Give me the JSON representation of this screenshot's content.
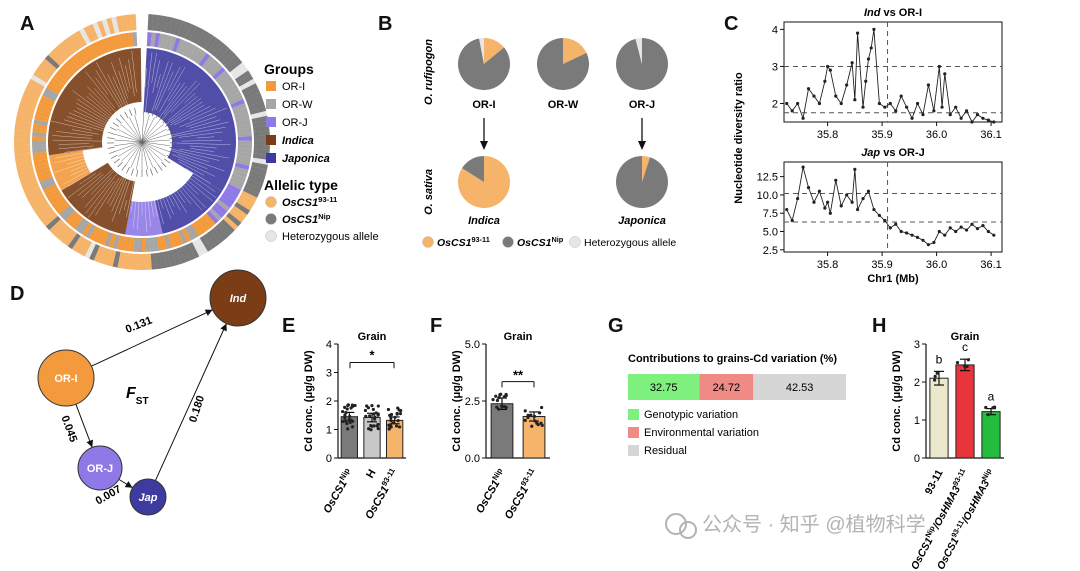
{
  "colors": {
    "or_i": "#f39a3d",
    "or_w": "#a6a6a6",
    "or_j": "#8f79e6",
    "indica": "#7a3d15",
    "japonica": "#3e3ba0",
    "allele_9311": "#f5b46a",
    "allele_nip": "#7a7a7a",
    "hetero": "#e6e6e6",
    "genotypic": "#7ef07e",
    "environmental": "#f08a84",
    "residual": "#d6d6d6",
    "h_9311": "#ece8cc",
    "h_hma3_9311": "#e8343b",
    "h_hma3_nip": "#25bb3c"
  },
  "panels": {
    "a": "A",
    "b": "B",
    "c": "C",
    "d": "D",
    "e": "E",
    "f": "F",
    "g": "G",
    "h": "H"
  },
  "panel_a": {
    "groups_title": "Groups",
    "groups": [
      "OR-I",
      "OR-W",
      "OR-J",
      "Indica",
      "Japonica"
    ],
    "allelic_title": "Allelic type",
    "alleles": [
      {
        "base": "OsCS1",
        "sup": "93-11"
      },
      {
        "base": "OsCS1",
        "sup": "Nip"
      },
      {
        "base": "Heterozygous allele",
        "sup": ""
      }
    ]
  },
  "panel_b": {
    "row1_label": "O. rufipogon",
    "row2_label": "O. sativa",
    "pies_top": [
      {
        "label": "OR-I",
        "shares": [
          0.14,
          0.83,
          0.03
        ]
      },
      {
        "label": "OR-W",
        "shares": [
          0.18,
          0.82,
          0.0
        ]
      },
      {
        "label": "OR-J",
        "shares": [
          0.0,
          0.96,
          0.04
        ]
      }
    ],
    "pies_bottom": [
      {
        "label": "Indica",
        "shares": [
          0.84,
          0.16,
          0.0
        ]
      },
      {
        "label": "Japonica",
        "shares": [
          0.05,
          0.95,
          0.0
        ]
      }
    ],
    "legend": [
      {
        "base": "OsCS1",
        "sup": "93-11"
      },
      {
        "base": "OsCS1",
        "sup": "Nip"
      },
      {
        "base": "Heterozygous allele",
        "sup": ""
      }
    ]
  },
  "chart_data": [
    {
      "type": "line",
      "title": "Ind vs OR-I",
      "ylabel": "Nucleotide diversity ratio",
      "xlim": [
        35.72,
        36.12
      ],
      "ylim": [
        1.5,
        4.2
      ],
      "yticks": [
        "2",
        "3",
        "4"
      ],
      "xticks": [
        "35.8",
        "35.9",
        "36.0",
        "36.1"
      ],
      "thresholds": [
        3.0,
        1.75
      ],
      "vline": 35.91,
      "x": [
        35.725,
        35.735,
        35.745,
        35.755,
        35.765,
        35.775,
        35.785,
        35.795,
        35.8,
        35.805,
        35.815,
        35.825,
        35.835,
        35.845,
        35.85,
        35.855,
        35.865,
        35.87,
        35.875,
        35.88,
        35.885,
        35.895,
        35.905,
        35.915,
        35.925,
        35.935,
        35.945,
        35.955,
        35.965,
        35.975,
        35.985,
        35.995,
        36.005,
        36.01,
        36.015,
        36.025,
        36.035,
        36.045,
        36.055,
        36.065,
        36.075,
        36.085,
        36.095,
        36.105
      ],
      "y": [
        2.0,
        1.8,
        2.0,
        1.6,
        2.4,
        2.2,
        2.0,
        2.6,
        3.0,
        2.9,
        2.2,
        2.0,
        2.5,
        3.1,
        2.1,
        3.9,
        1.9,
        2.6,
        3.2,
        3.5,
        4.0,
        2.0,
        1.9,
        2.0,
        1.8,
        2.2,
        1.9,
        1.6,
        2.0,
        1.7,
        2.5,
        1.8,
        3.0,
        1.9,
        2.8,
        1.7,
        1.9,
        1.6,
        1.8,
        1.5,
        1.7,
        1.6,
        1.55,
        1.5
      ]
    },
    {
      "type": "line",
      "title": "Jap vs OR-J",
      "ylabel": "Nucleotide diversity ratio",
      "xlabel": "Chr1 (Mb)",
      "xlim": [
        35.72,
        36.12
      ],
      "ylim": [
        2.2,
        14.5
      ],
      "yticks": [
        "2.5",
        "5.0",
        "7.5",
        "10.0",
        "12.5"
      ],
      "xticks": [
        "35.8",
        "35.9",
        "36.0",
        "36.1"
      ],
      "thresholds": [
        10.2,
        6.3
      ],
      "vline": 35.91,
      "x": [
        35.725,
        35.735,
        35.745,
        35.755,
        35.765,
        35.775,
        35.785,
        35.795,
        35.8,
        35.805,
        35.815,
        35.825,
        35.835,
        35.845,
        35.85,
        35.855,
        35.865,
        35.875,
        35.885,
        35.895,
        35.905,
        35.915,
        35.925,
        35.935,
        35.945,
        35.955,
        35.965,
        35.975,
        35.985,
        35.995,
        36.005,
        36.015,
        36.025,
        36.035,
        36.045,
        36.055,
        36.065,
        36.075,
        36.085,
        36.095,
        36.105
      ],
      "y": [
        8.0,
        6.5,
        9.5,
        13.8,
        11.0,
        9.0,
        10.5,
        8.2,
        9.0,
        7.5,
        12.0,
        8.5,
        10.0,
        9.0,
        13.5,
        8.0,
        9.5,
        10.5,
        8.0,
        7.2,
        6.5,
        5.5,
        6.0,
        5.0,
        4.8,
        4.5,
        4.2,
        3.8,
        3.2,
        3.5,
        5.0,
        4.5,
        5.5,
        5.0,
        5.6,
        5.2,
        6.0,
        5.4,
        5.8,
        5.0,
        4.5
      ]
    },
    {
      "type": "bar",
      "panel": "E",
      "title": "Grain",
      "ylabel": "Cd conc. (μg/g DW)",
      "ylim": [
        0,
        4
      ],
      "yticks": [
        "0",
        "1",
        "2",
        "3",
        "4"
      ],
      "categories": [
        {
          "base": "OsCS1",
          "sup": "Nip"
        },
        {
          "base": "H",
          "sup": ""
        },
        {
          "base": "OsCS1",
          "sup": "93-11"
        }
      ],
      "values": [
        1.45,
        1.42,
        1.32
      ],
      "errors": [
        0.15,
        0.15,
        0.12
      ],
      "significance": "*"
    },
    {
      "type": "bar",
      "panel": "F",
      "title": "Grain",
      "ylabel": "Cd conc. (μg/g DW)",
      "ylim": [
        0,
        5
      ],
      "yticks": [
        "0.0",
        "2.5",
        "5.0"
      ],
      "categories": [
        {
          "base": "OsCS1",
          "sup": "Nip"
        },
        {
          "base": "OsCS1",
          "sup": "93-11"
        }
      ],
      "values": [
        2.38,
        1.82
      ],
      "errors": [
        0.25,
        0.2
      ],
      "significance": "**"
    },
    {
      "type": "bar",
      "panel": "G",
      "title": "Contributions to grains-Cd variation (%)",
      "categories": [
        "Genotypic variation",
        "Environmental variation",
        "Residual"
      ],
      "values": [
        32.75,
        24.72,
        42.53
      ],
      "labels": [
        "32.75",
        "24.72",
        "42.53"
      ]
    },
    {
      "type": "bar",
      "panel": "H",
      "title": "Grain",
      "ylabel": "Cd conc. (μg/g DW)",
      "ylim": [
        0,
        3
      ],
      "yticks": [
        "0",
        "1",
        "2",
        "3"
      ],
      "categories": [
        {
          "base": "93-11",
          "sup": ""
        },
        {
          "base": "OsCS1",
          "sup": "Nip",
          "tail": "/OsHMA3",
          "tailsup": "93-11"
        },
        {
          "base": "OsCS1",
          "sup": "93-11",
          "tail": "/OsHMA3",
          "tailsup": "Nip"
        }
      ],
      "values": [
        2.1,
        2.45,
        1.22
      ],
      "errors": [
        0.18,
        0.15,
        0.08
      ],
      "letters": [
        "b",
        "c",
        "a"
      ]
    }
  ],
  "panel_d": {
    "nodes": [
      "Ind",
      "OR-I",
      "OR-J",
      "Jap"
    ],
    "edges": [
      {
        "from": "OR-I",
        "to": "Ind",
        "value": "0.131"
      },
      {
        "from": "OR-I",
        "to": "OR-J",
        "value": "0.045"
      },
      {
        "from": "OR-J",
        "to": "Jap",
        "value": "0.007"
      },
      {
        "from": "Jap",
        "to": "Ind",
        "value": "0.180"
      }
    ],
    "center_label": "F",
    "center_sub": "ST"
  },
  "watermark": "公众号 · 知乎 @植物科学"
}
